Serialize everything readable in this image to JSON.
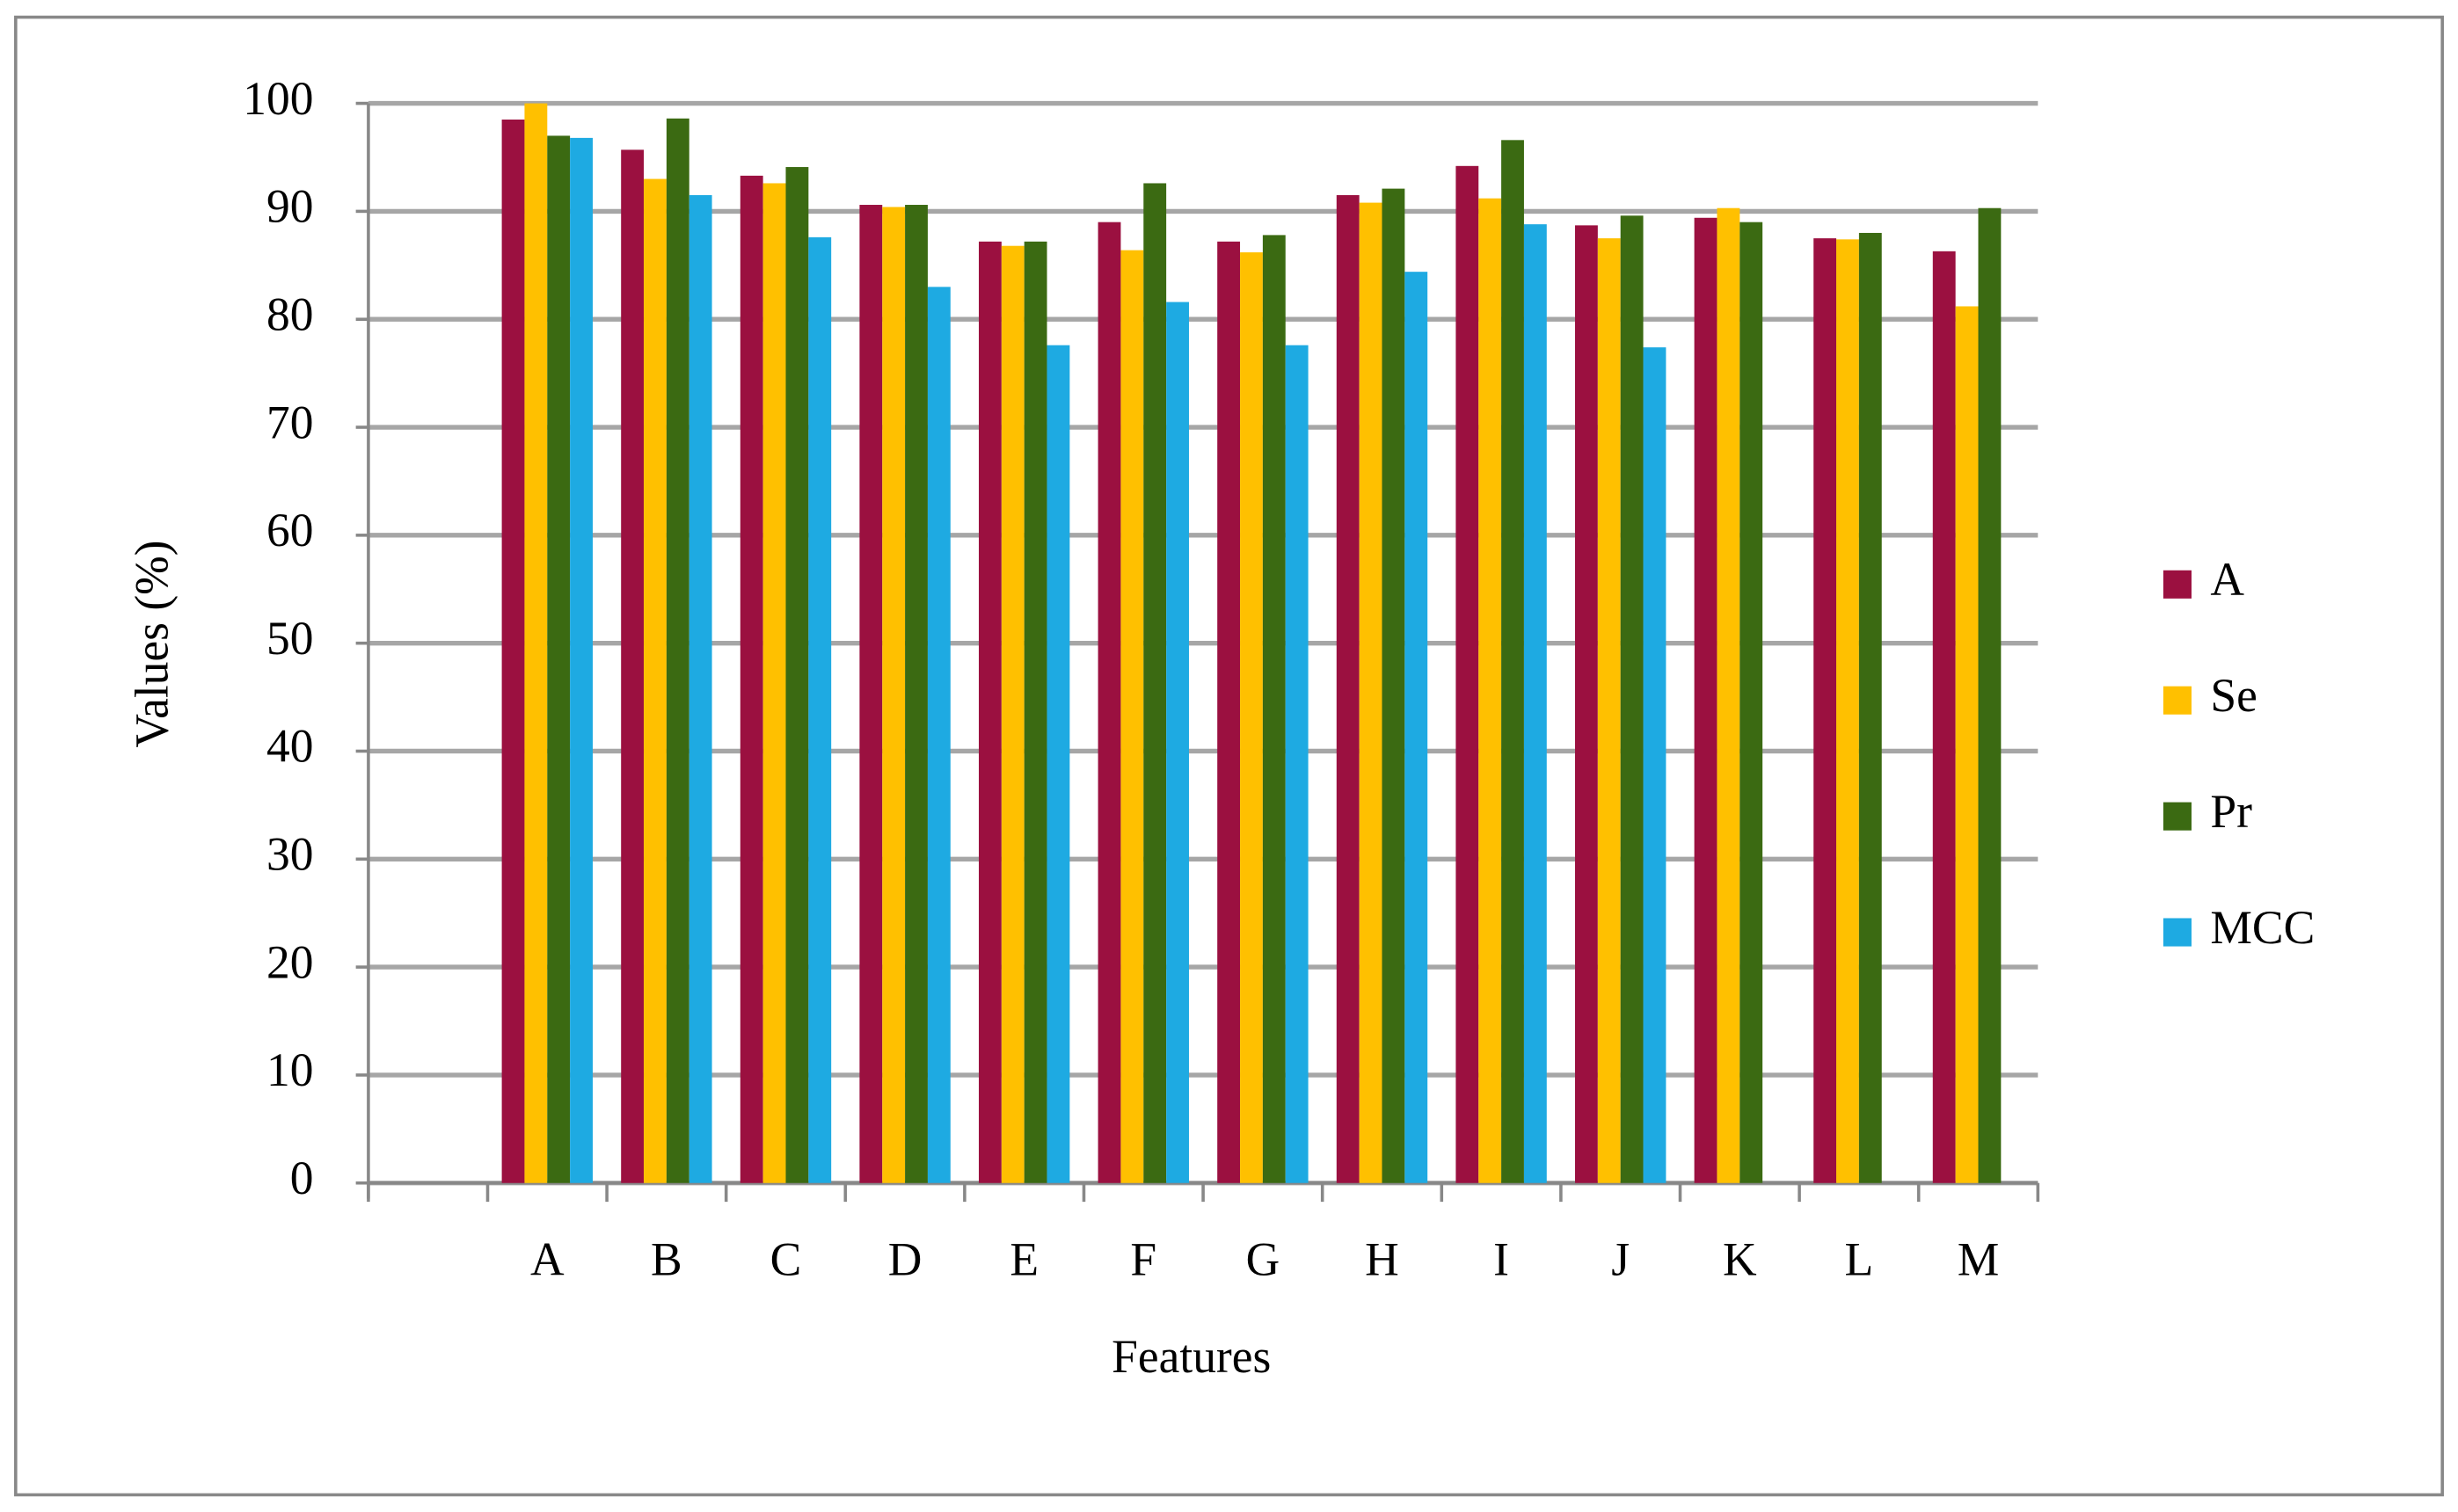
{
  "chart_data": {
    "type": "bar",
    "x_label": "Features",
    "y_label": "Values (%)",
    "categories": [
      null,
      "A",
      "B",
      "C",
      "D",
      "E",
      "F",
      "G",
      "H",
      "I",
      "J",
      "K",
      "L",
      "M"
    ],
    "series": [
      {
        "name": "A",
        "color": "#9b1040",
        "values": [
          null,
          98.5,
          95.7,
          93.3,
          90.6,
          87.2,
          89,
          87.2,
          91.5,
          94.2,
          88.7,
          89.4,
          87.5,
          86.3
        ]
      },
      {
        "name": "Se",
        "color": "#ffc000",
        "values": [
          null,
          100,
          93,
          92.6,
          90.4,
          86.8,
          86.4,
          86.2,
          90.8,
          91.2,
          87.5,
          90.3,
          87.4,
          81.2
        ]
      },
      {
        "name": "Pr",
        "color": "#3b6a12",
        "values": [
          null,
          97,
          98.6,
          94.1,
          90.6,
          87.2,
          92.6,
          87.8,
          92.1,
          96.6,
          89.6,
          89,
          88,
          90.3
        ]
      },
      {
        "name": "MCC",
        "color": "#1eaae2",
        "values": [
          null,
          96.8,
          91.5,
          87.6,
          83,
          77.6,
          81.6,
          77.6,
          84.4,
          88.8,
          77.4,
          null,
          null,
          null
        ]
      }
    ],
    "ylim": [
      0,
      100
    ],
    "yticks": [
      0,
      10,
      20,
      30,
      40,
      50,
      60,
      70,
      80,
      90,
      100
    ],
    "grid": true,
    "legend": "right"
  }
}
